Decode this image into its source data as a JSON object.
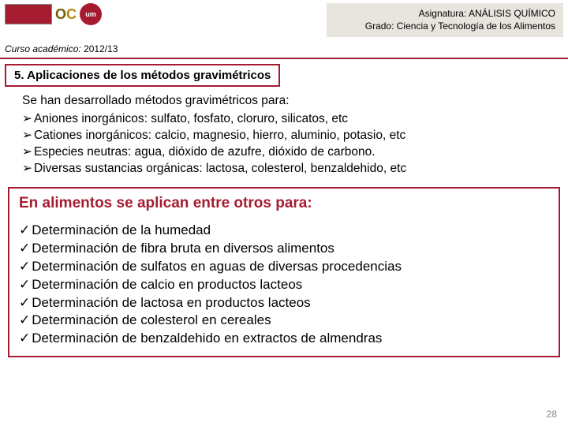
{
  "header": {
    "asignatura_label": "Asignatura:",
    "asignatura_value": "ANÁLISIS QUÍMICO",
    "grado_label": "Grado:",
    "grado_value": "Ciencia y Tecnología de los Alimentos",
    "curso_label": "Curso académico:",
    "curso_value": "2012/13",
    "logo_um": "um"
  },
  "section_title": "5. Aplicaciones de los métodos gravimétricos",
  "intro": "Se  han desarrollado métodos gravimétricos  para:",
  "arrow_items": [
    "Aniones inorgánicos: sulfato, fosfato, cloruro, silicatos, etc",
    "Cationes inorgánicos: calcio, magnesio, hierro, aluminio, potasio, etc",
    "Especies neutras: agua, dióxido de azufre, dióxido de carbono.",
    "Diversas sustancias orgánicas: lactosa, colesterol, benzaldehido, etc"
  ],
  "box_heading": "En alimentos se aplican  entre otros para:",
  "check_items": [
    "Determinación de la humedad",
    "Determinación de fibra bruta en diversos alimentos",
    "Determinación de sulfatos en aguas de diversas procedencias",
    "Determinación de  calcio en productos lacteos",
    "Determinación de lactosa en productos lacteos",
    "Determinación de colesterol  en cereales",
    "Determinación de  benzaldehido en extractos de almendras"
  ],
  "page_number": "28"
}
